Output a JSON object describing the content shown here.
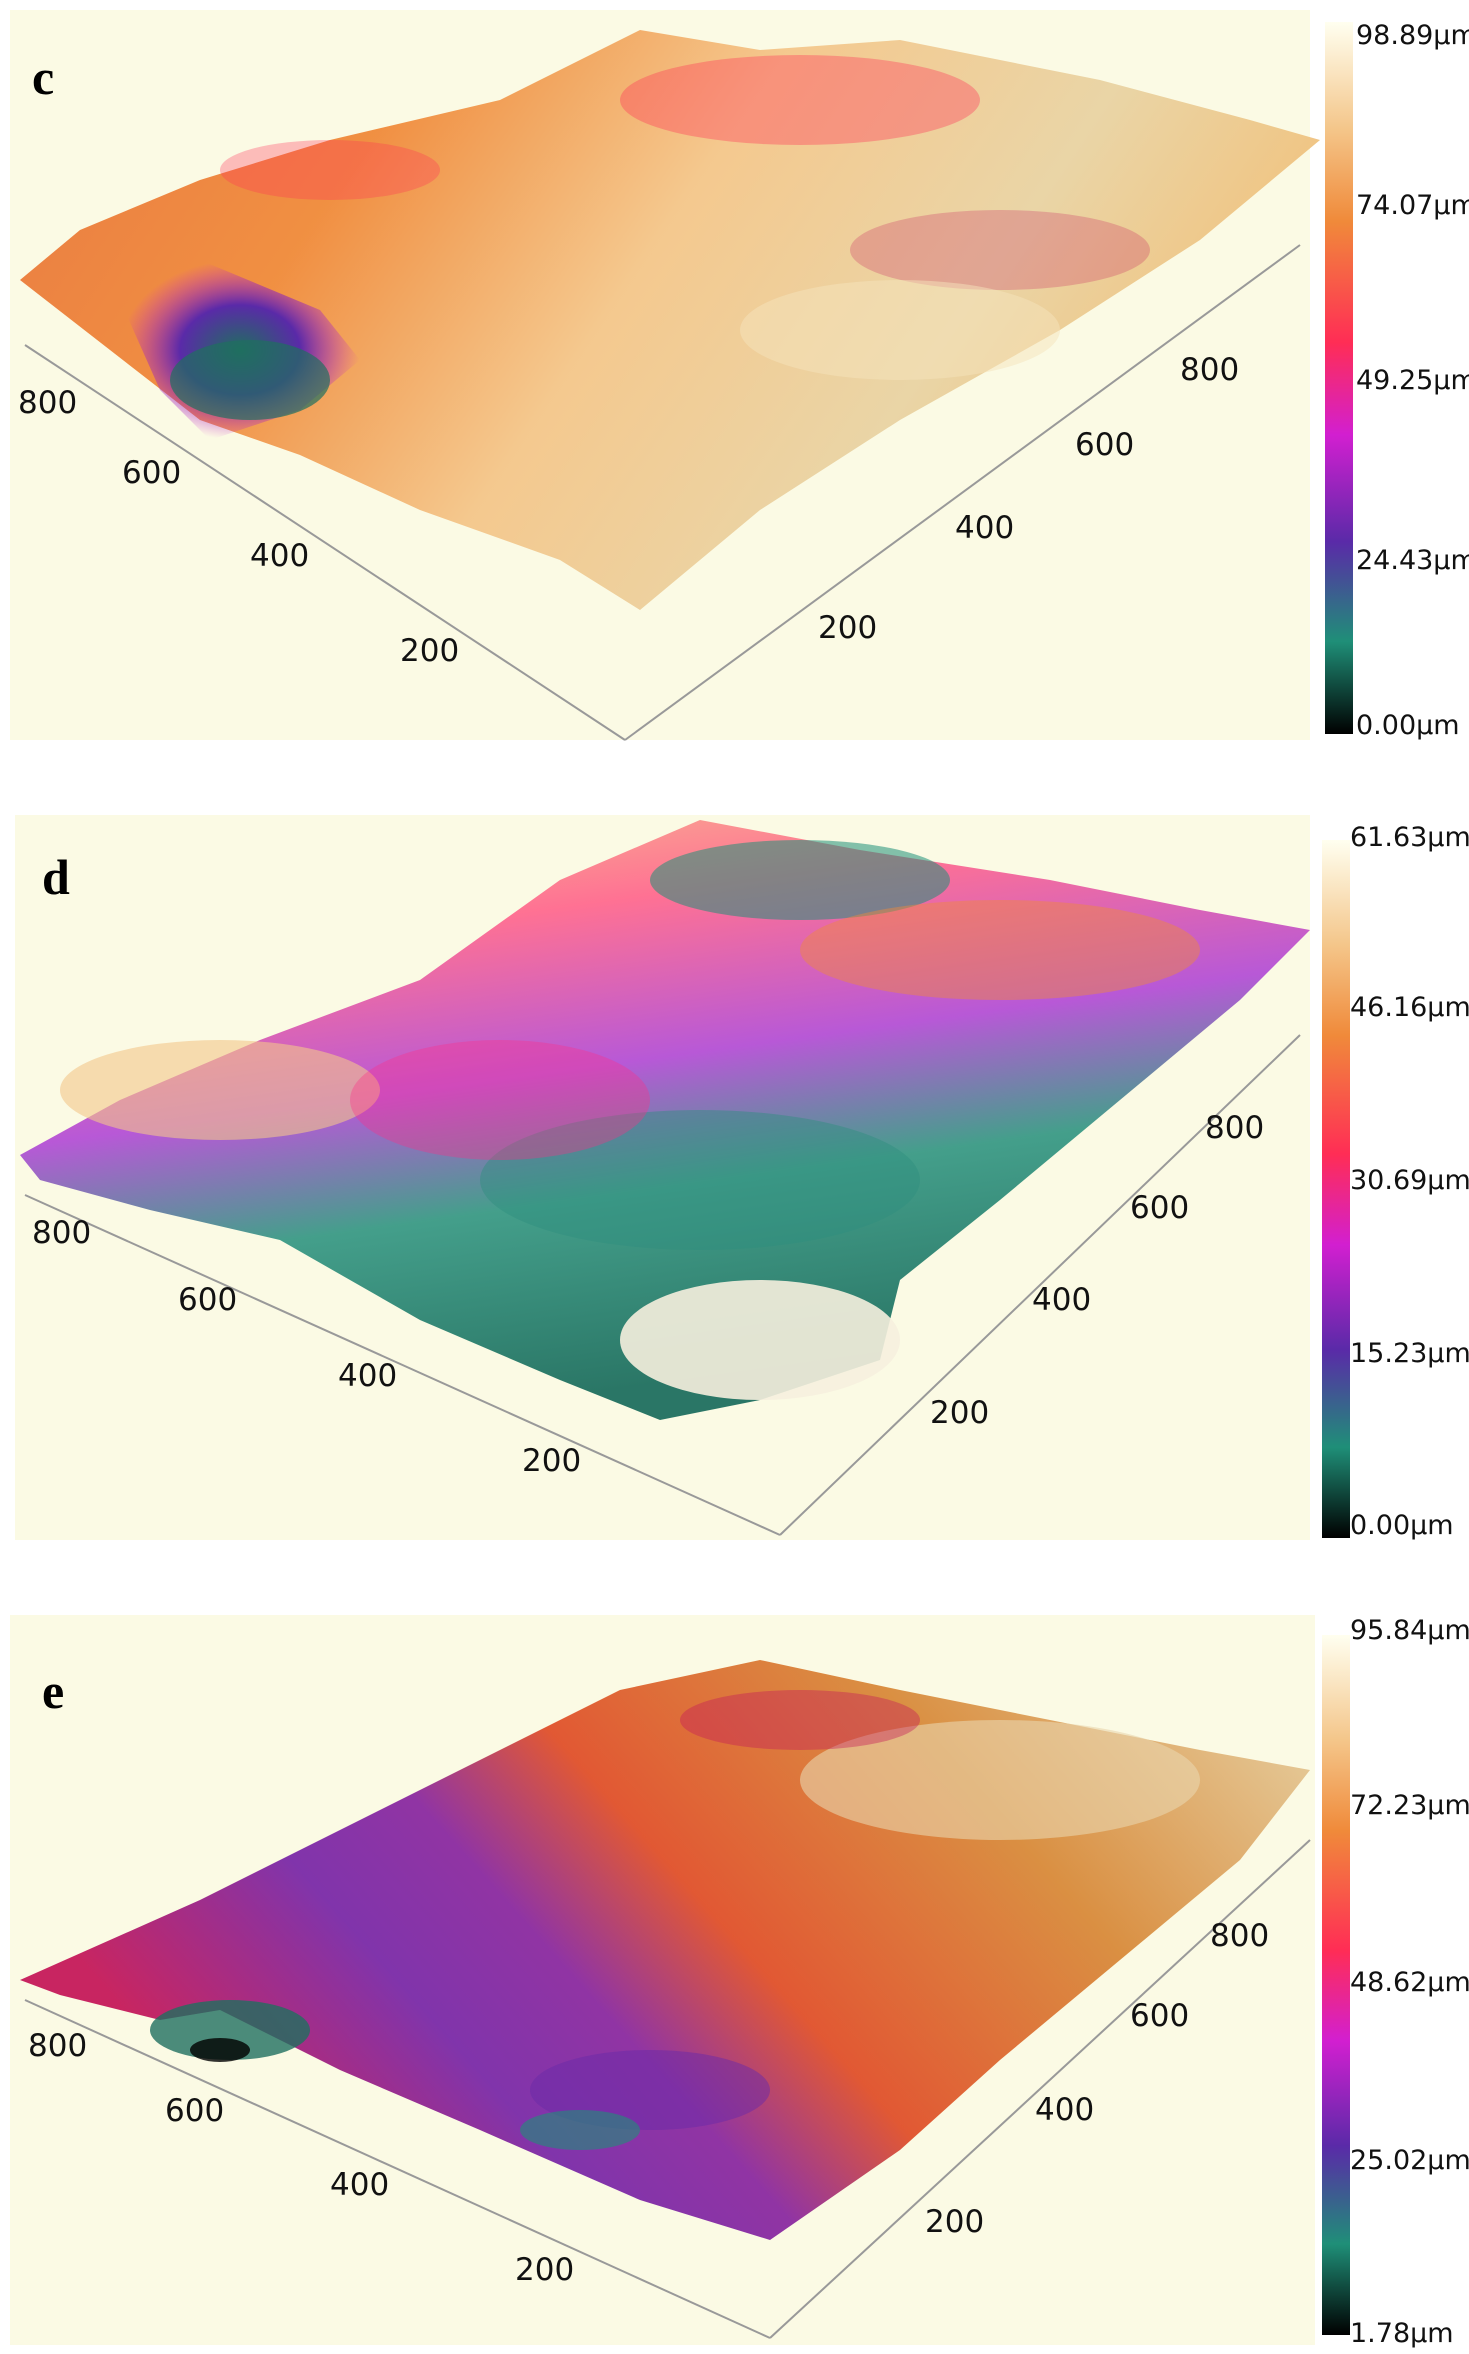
{
  "panels": [
    {
      "letter": "c",
      "axis_left_ticks": [
        "800",
        "600",
        "400",
        "200"
      ],
      "axis_right_ticks": [
        "800",
        "600",
        "400",
        "200"
      ],
      "colorbar_labels": [
        "98.89µm",
        "74.07µm",
        "49.25µm",
        "24.43µm",
        "0.00µm"
      ]
    },
    {
      "letter": "d",
      "axis_left_ticks": [
        "800",
        "600",
        "400",
        "200"
      ],
      "axis_right_ticks": [
        "800",
        "600",
        "400",
        "200"
      ],
      "colorbar_labels": [
        "61.63µm",
        "46.16µm",
        "30.69µm",
        "15.23µm",
        "0.00µm"
      ]
    },
    {
      "letter": "e",
      "axis_left_ticks": [
        "800",
        "600",
        "400",
        "200"
      ],
      "axis_right_ticks": [
        "800",
        "600",
        "400",
        "200"
      ],
      "colorbar_labels": [
        "95.84µm",
        "72.23µm",
        "48.62µm",
        "25.02µm",
        "1.78µm"
      ]
    }
  ],
  "colors": {
    "plot_background": "#fbfae4",
    "colormap": [
      "#fffff0",
      "#f4c68a",
      "#f08a3a",
      "#ff2d55",
      "#d21fd0",
      "#5a2aa8",
      "#1f8f78",
      "#000000"
    ]
  }
}
